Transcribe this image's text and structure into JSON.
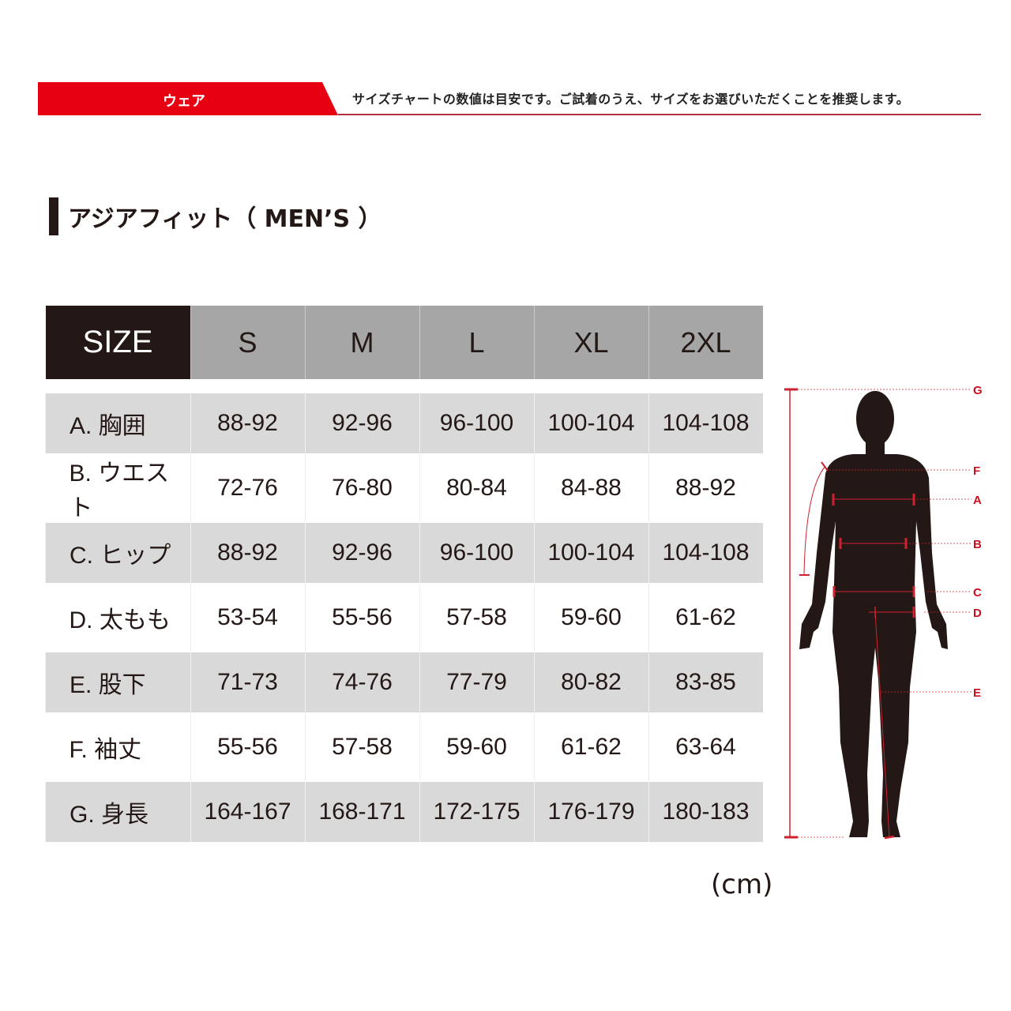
{
  "header": {
    "category": "ウェア",
    "notice": "サイズチャートの数値は目安です。ご試着のうえ、サイズをお選びいただくことを推奨します。",
    "accent_color": "#e60012"
  },
  "section_title": "アジアフィット（ MEN’S ）",
  "table": {
    "corner": "SIZE",
    "sizes": [
      "S",
      "M",
      "L",
      "XL",
      "2XL"
    ],
    "rows": [
      {
        "label": "A. 胸囲",
        "values": [
          "88-92",
          "92-96",
          "96-100",
          "100-104",
          "104-108"
        ]
      },
      {
        "label": "B. ウエスト",
        "values": [
          "72-76",
          "76-80",
          "80-84",
          "84-88",
          "88-92"
        ]
      },
      {
        "label": "C. ヒップ",
        "values": [
          "88-92",
          "92-96",
          "96-100",
          "100-104",
          "104-108"
        ]
      },
      {
        "label": "D. 太もも",
        "values": [
          "53-54",
          "55-56",
          "57-58",
          "59-60",
          "61-62"
        ]
      },
      {
        "label": "E. 股下",
        "values": [
          "71-73",
          "74-76",
          "77-79",
          "80-82",
          "83-85"
        ]
      },
      {
        "label": "F. 袖丈",
        "values": [
          "55-56",
          "57-58",
          "59-60",
          "61-62",
          "63-64"
        ]
      },
      {
        "label": "G. 身長",
        "values": [
          "164-167",
          "168-171",
          "172-175",
          "176-179",
          "180-183"
        ]
      }
    ],
    "unit": "(cm)"
  },
  "figure": {
    "markers": [
      "G",
      "F",
      "A",
      "B",
      "C",
      "D",
      "E"
    ]
  }
}
